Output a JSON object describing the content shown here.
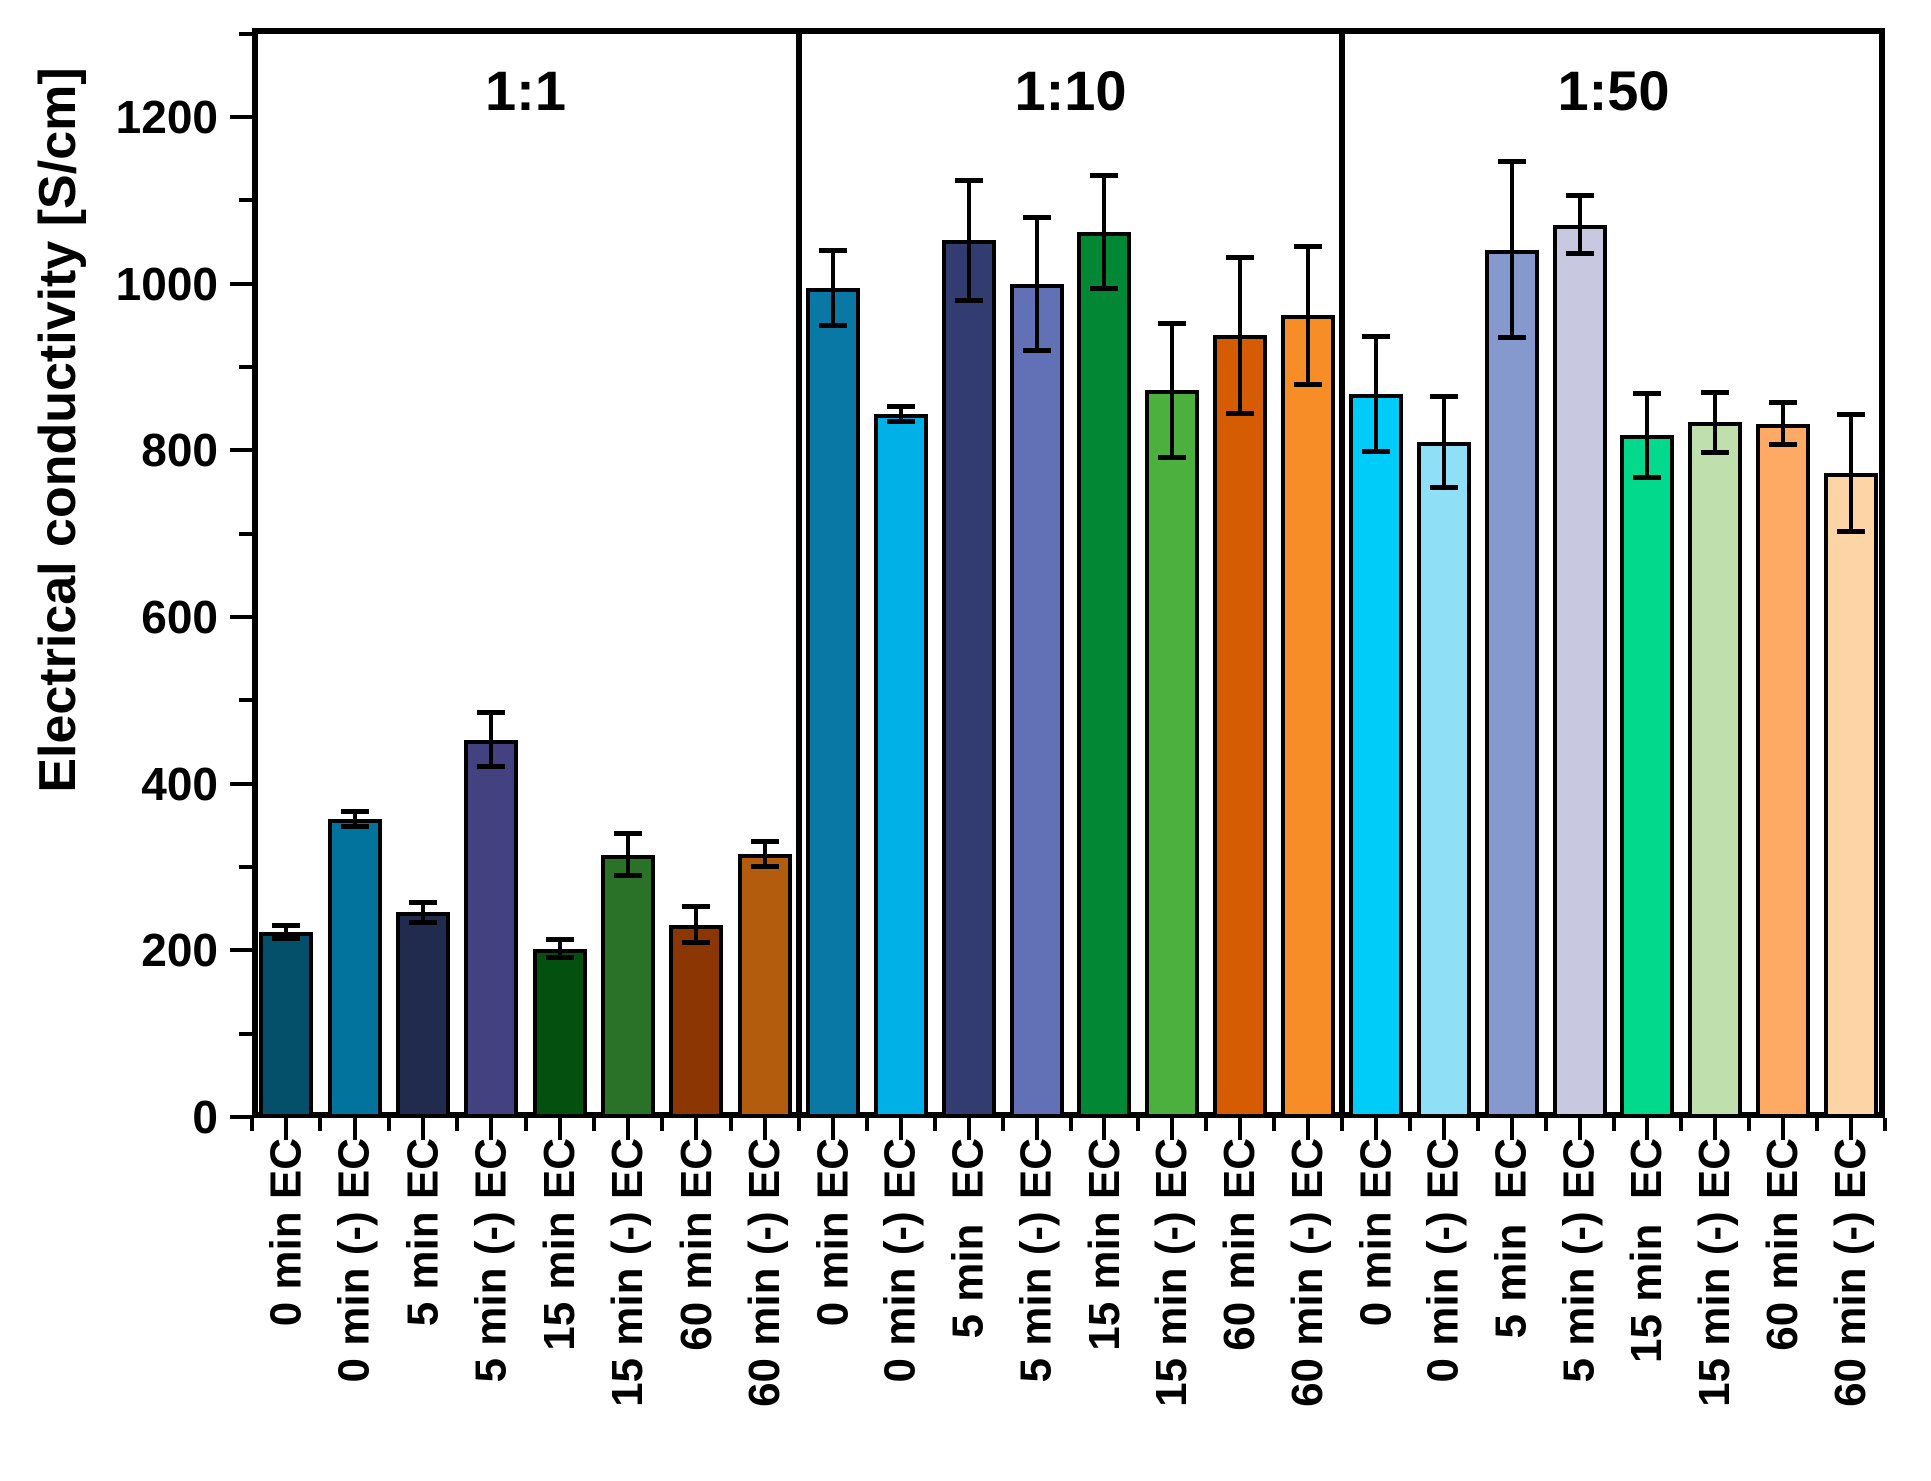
{
  "chart_data": {
    "type": "bar",
    "title": "",
    "xlabel": "",
    "ylabel": "Electrical conductivity [S/cm]",
    "ylim": [
      0,
      1300
    ],
    "yticks_major": [
      0,
      200,
      400,
      600,
      800,
      1000,
      1200
    ],
    "yticks_minor": [
      100,
      300,
      500,
      700,
      900,
      1100,
      1300
    ],
    "grid": false,
    "legend": false,
    "error_bars": true,
    "bar_outline_color": "#000000",
    "panels": [
      {
        "group_label": "1:1",
        "bars": [
          {
            "label": "0 min EC",
            "value": 222,
            "error": 8,
            "color": "#04506b"
          },
          {
            "label": "0 min (-) EC",
            "value": 358,
            "error": 9,
            "color": "#02739d"
          },
          {
            "label": "5 min EC",
            "value": 246,
            "error": 12,
            "color": "#202b4e"
          },
          {
            "label": "5 min (-) EC",
            "value": 453,
            "error": 32,
            "color": "#434180"
          },
          {
            "label": "15 min EC",
            "value": 202,
            "error": 11,
            "color": "#03500f"
          },
          {
            "label": "15 min (-) EC",
            "value": 315,
            "error": 25,
            "color": "#2a7227"
          },
          {
            "label": "60 min EC",
            "value": 231,
            "error": 22,
            "color": "#8c3603"
          },
          {
            "label": "60 min (-) EC",
            "value": 316,
            "error": 15,
            "color": "#b35c0e"
          }
        ]
      },
      {
        "group_label": "1:10",
        "bars": [
          {
            "label": "0 min EC",
            "value": 995,
            "error": 45,
            "color": "#0a78a4"
          },
          {
            "label": "0 min (-) EC",
            "value": 844,
            "error": 9,
            "color": "#00b0e6"
          },
          {
            "label": "5 min  EC",
            "value": 1052,
            "error": 72,
            "color": "#333c70"
          },
          {
            "label": "5 min (-) EC",
            "value": 1000,
            "error": 80,
            "color": "#6270b5"
          },
          {
            "label": "15 min EC",
            "value": 1062,
            "error": 68,
            "color": "#028734"
          },
          {
            "label": "15 min (-) EC",
            "value": 872,
            "error": 80,
            "color": "#4cb03e"
          },
          {
            "label": "60 min EC",
            "value": 938,
            "error": 94,
            "color": "#d55c03"
          },
          {
            "label": "60 min (-) EC",
            "value": 962,
            "error": 83,
            "color": "#f68d26"
          }
        ]
      },
      {
        "group_label": "1:50",
        "bars": [
          {
            "label": "0 min EC",
            "value": 868,
            "error": 69,
            "color": "#00ccfa"
          },
          {
            "label": "0 min (-) EC",
            "value": 810,
            "error": 55,
            "color": "#8fe0f7"
          },
          {
            "label": "5 min  EC",
            "value": 1041,
            "error": 106,
            "color": "#8699cf"
          },
          {
            "label": "5 min (-) EC",
            "value": 1071,
            "error": 35,
            "color": "#c8c8e0"
          },
          {
            "label": "15 min  EC",
            "value": 818,
            "error": 50,
            "color": "#03d98d"
          },
          {
            "label": "15 min (-) EC",
            "value": 834,
            "error": 36,
            "color": "#bfe0ad"
          },
          {
            "label": "60 min EC",
            "value": 832,
            "error": 25,
            "color": "#feaa64"
          },
          {
            "label": "60 min (-) EC",
            "value": 773,
            "error": 70,
            "color": "#fcd4a6"
          }
        ]
      }
    ]
  }
}
